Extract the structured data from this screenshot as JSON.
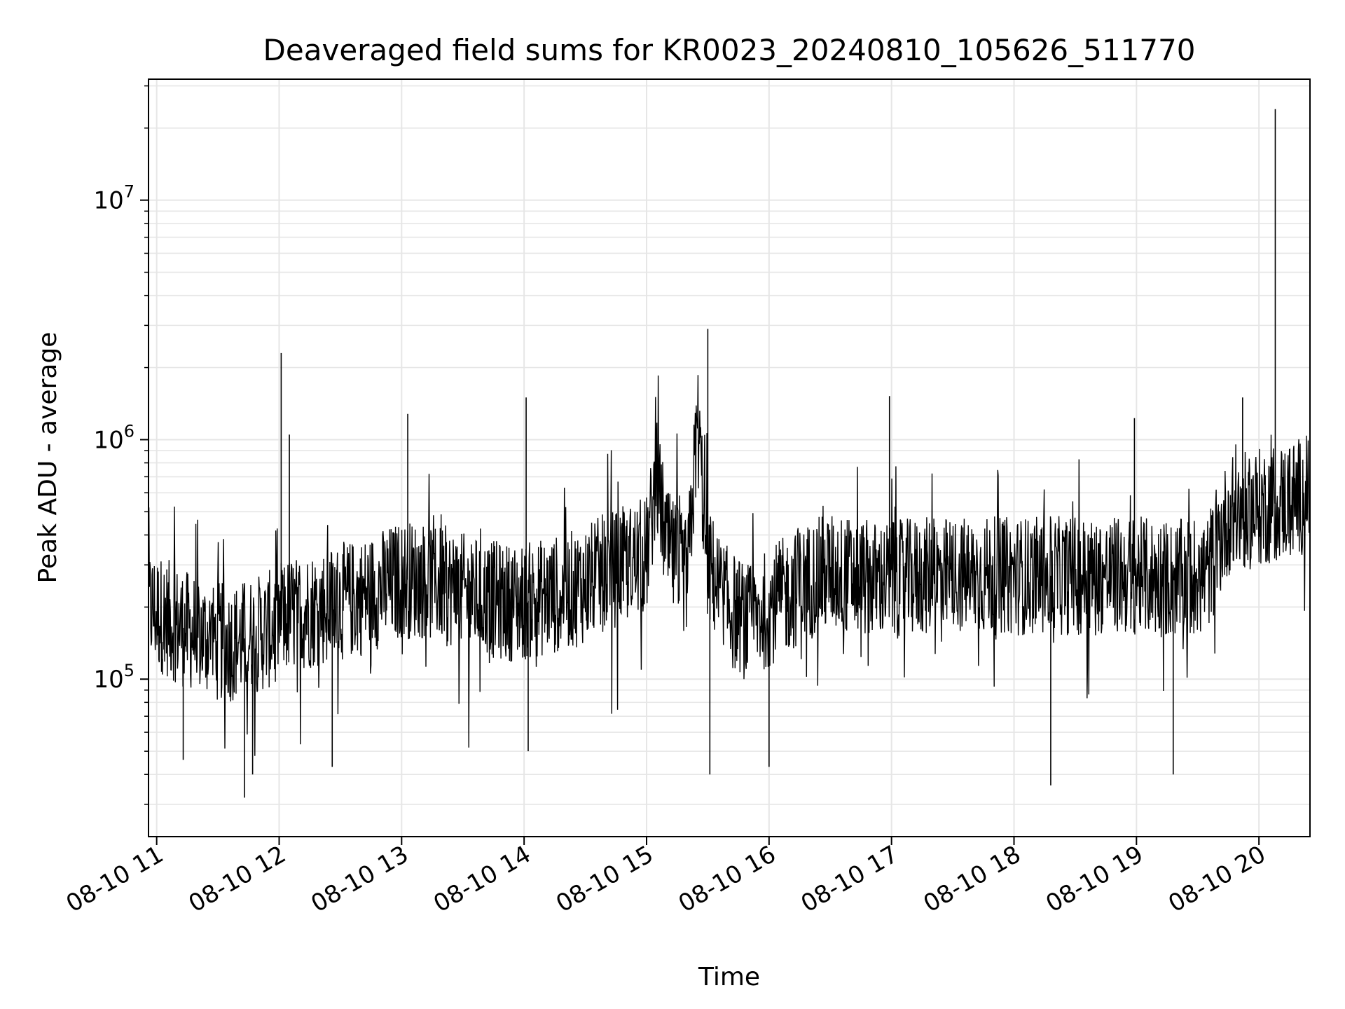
{
  "chart_data": {
    "type": "line",
    "title": "Deaveraged field sums for KR0023_20240810_105626_511770",
    "xlabel": "Time",
    "ylabel": "Peak ADU - average",
    "yscale": "log",
    "ylim": [
      22000,
      32000000
    ],
    "xlim": [
      "2024-08-10 10:56",
      "2024-08-10 20:25"
    ],
    "grid": true,
    "line_color": "#000000",
    "grid_color": "#e6e6e6",
    "x_tick_labels": [
      "08-10 11",
      "08-10 12",
      "08-10 13",
      "08-10 14",
      "08-10 15",
      "08-10 16",
      "08-10 17",
      "08-10 18",
      "08-10 19",
      "08-10 20"
    ],
    "x_tick_hours": [
      11,
      12,
      13,
      14,
      15,
      16,
      17,
      18,
      19,
      20
    ],
    "y_tick_values": [
      100000,
      1000000,
      10000000
    ],
    "y_tick_labels": [
      {
        "base": "10",
        "exp": "5"
      },
      {
        "base": "10",
        "exp": "6"
      },
      {
        "base": "10",
        "exp": "7"
      }
    ],
    "series": [
      {
        "points": [
          [
            "2024-08-10 10:56",
            200000
          ],
          [
            "2024-08-10 11:05",
            180000
          ],
          [
            "2024-08-10 11:15",
            160000
          ],
          [
            "2024-08-10 11:25",
            150000
          ],
          [
            "2024-08-10 11:35",
            140000
          ],
          [
            "2024-08-10 11:45",
            150000
          ],
          [
            "2024-08-10 11:55",
            160000
          ],
          [
            "2024-08-10 12:00",
            180000
          ],
          [
            "2024-08-10 12:10",
            190000
          ],
          [
            "2024-08-10 12:20",
            200000
          ],
          [
            "2024-08-10 12:30",
            210000
          ],
          [
            "2024-08-10 12:40",
            220000
          ],
          [
            "2024-08-10 12:50",
            240000
          ],
          [
            "2024-08-10 13:00",
            260000
          ],
          [
            "2024-08-10 13:10",
            260000
          ],
          [
            "2024-08-10 13:20",
            250000
          ],
          [
            "2024-08-10 13:30",
            230000
          ],
          [
            "2024-08-10 13:40",
            220000
          ],
          [
            "2024-08-10 13:50",
            210000
          ],
          [
            "2024-08-10 14:00",
            210000
          ],
          [
            "2024-08-10 14:10",
            220000
          ],
          [
            "2024-08-10 14:20",
            230000
          ],
          [
            "2024-08-10 14:30",
            250000
          ],
          [
            "2024-08-10 14:40",
            280000
          ],
          [
            "2024-08-10 14:50",
            300000
          ],
          [
            "2024-08-10 15:00",
            330000
          ],
          [
            "2024-08-10 15:05",
            700000
          ],
          [
            "2024-08-10 15:10",
            350000
          ],
          [
            "2024-08-10 15:20",
            260000
          ],
          [
            "2024-08-10 15:25",
            1200000
          ],
          [
            "2024-08-10 15:30",
            300000
          ],
          [
            "2024-08-10 15:40",
            200000
          ],
          [
            "2024-08-10 15:50",
            170000
          ],
          [
            "2024-08-10 16:00",
            200000
          ],
          [
            "2024-08-10 16:10",
            230000
          ],
          [
            "2024-08-10 16:20",
            260000
          ],
          [
            "2024-08-10 16:30",
            280000
          ],
          [
            "2024-08-10 16:40",
            270000
          ],
          [
            "2024-08-10 16:50",
            260000
          ],
          [
            "2024-08-10 17:00",
            260000
          ],
          [
            "2024-08-10 17:20",
            270000
          ],
          [
            "2024-08-10 17:40",
            270000
          ],
          [
            "2024-08-10 18:00",
            270000
          ],
          [
            "2024-08-10 18:20",
            270000
          ],
          [
            "2024-08-10 18:40",
            270000
          ],
          [
            "2024-08-10 19:00",
            270000
          ],
          [
            "2024-08-10 19:20",
            260000
          ],
          [
            "2024-08-10 19:35",
            280000
          ],
          [
            "2024-08-10 19:45",
            480000
          ],
          [
            "2024-08-10 20:00",
            520000
          ],
          [
            "2024-08-10 20:15",
            560000
          ],
          [
            "2024-08-10 20:25",
            600000
          ]
        ]
      }
    ],
    "spikes": [
      [
        "2024-08-10 12:01",
        2300000
      ],
      [
        "2024-08-10 12:05",
        1050000
      ],
      [
        "2024-08-10 13:03",
        1280000
      ],
      [
        "2024-08-10 14:01",
        1500000
      ],
      [
        "2024-08-10 15:30",
        2900000
      ],
      [
        "2024-08-10 16:59",
        1520000
      ],
      [
        "2024-08-10 18:59",
        1230000
      ],
      [
        "2024-08-10 19:52",
        1500000
      ],
      [
        "2024-08-10 20:08",
        24000000
      ]
    ],
    "dips": [
      [
        "2024-08-10 11:43",
        32000
      ],
      [
        "2024-08-10 11:47",
        40000
      ],
      [
        "2024-08-10 11:13",
        46000
      ],
      [
        "2024-08-10 12:26",
        43000
      ],
      [
        "2024-08-10 15:31",
        40000
      ],
      [
        "2024-08-10 16:00",
        43000
      ],
      [
        "2024-08-10 18:18",
        36000
      ],
      [
        "2024-08-10 19:18",
        40000
      ],
      [
        "2024-08-10 14:02",
        50000
      ]
    ]
  }
}
